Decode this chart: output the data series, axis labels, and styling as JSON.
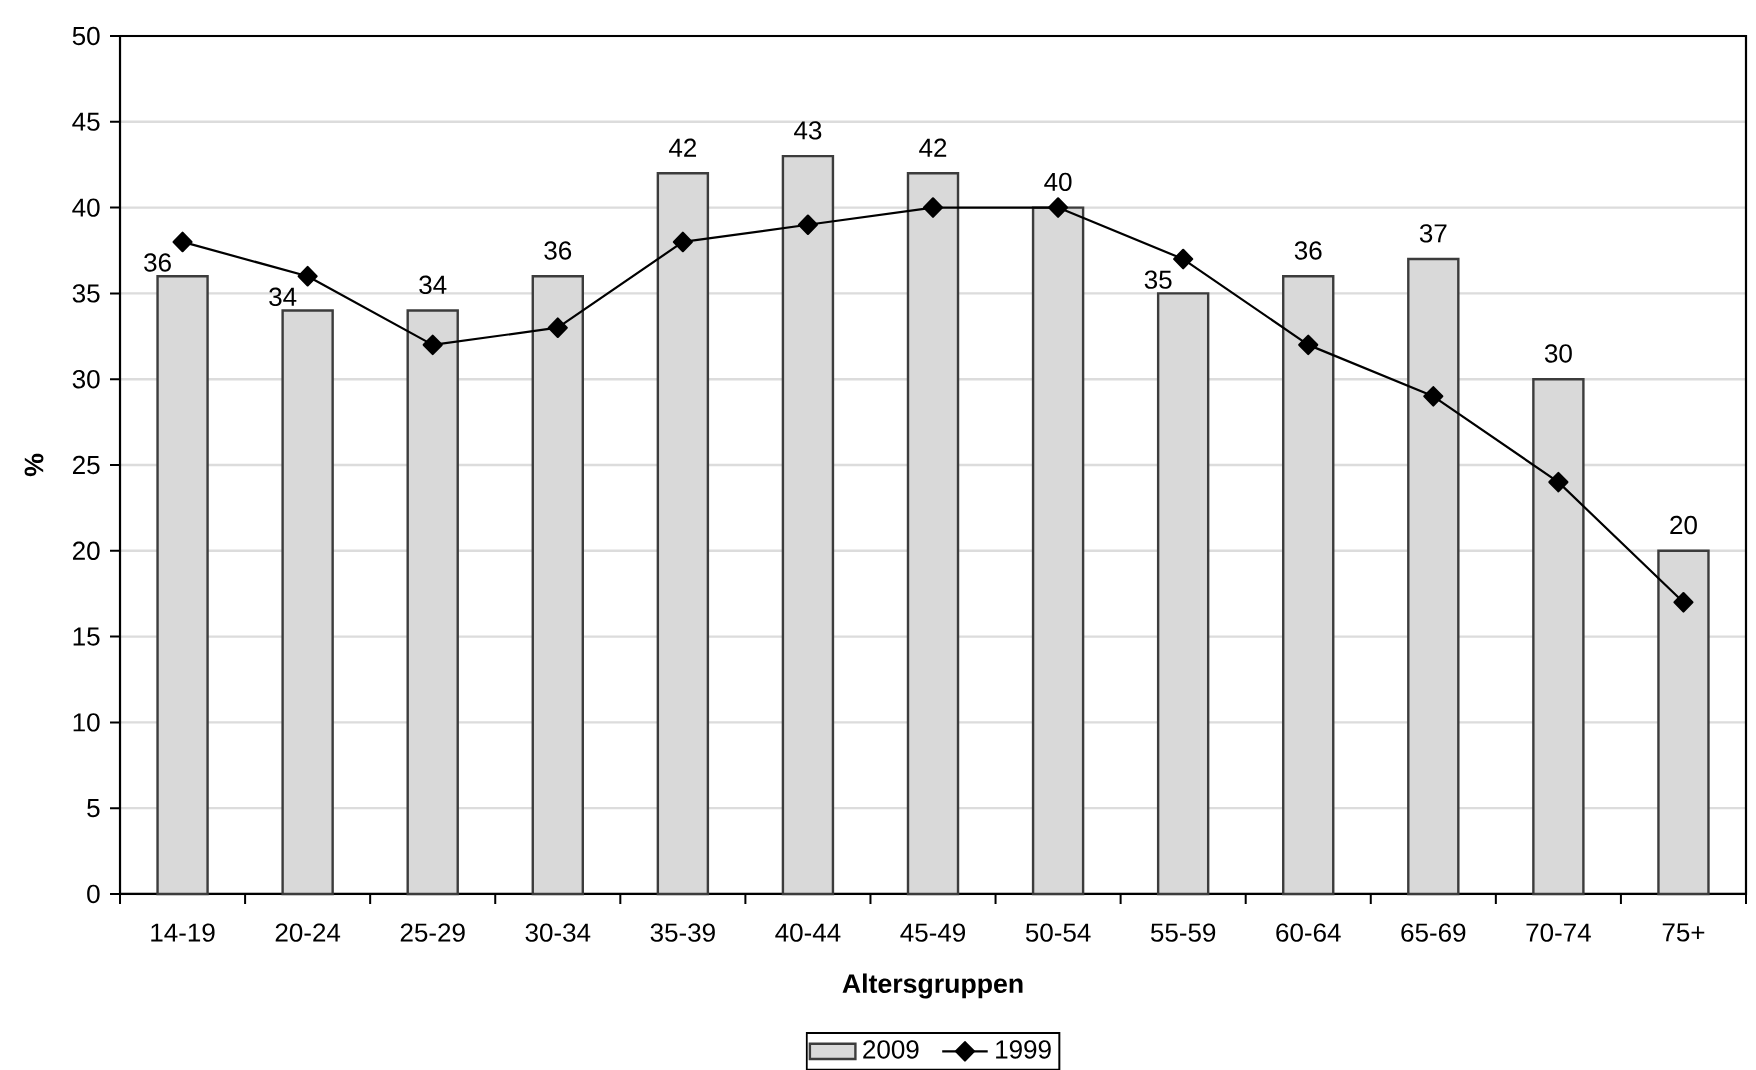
{
  "chart_data": {
    "type": "bar",
    "xlabel": "Altersgruppen",
    "ylabel": "%",
    "categories": [
      "14-19",
      "20-24",
      "25-29",
      "30-34",
      "35-39",
      "40-44",
      "45-49",
      "50-54",
      "55-59",
      "60-64",
      "65-69",
      "70-74",
      "75+"
    ],
    "series": [
      {
        "name": "2009",
        "color": "#d9d9d9",
        "values": [
          36,
          34,
          34,
          36,
          42,
          43,
          42,
          40,
          35,
          36,
          37,
          30,
          20
        ],
        "value_labels": [
          "36",
          "34",
          "34",
          "36",
          "42",
          "43",
          "42",
          "40",
          "35",
          "36",
          "37",
          "30",
          "20"
        ]
      },
      {
        "name": "1999",
        "type": "line",
        "color": "#000000",
        "values": [
          38,
          36,
          32,
          33,
          38,
          39,
          40,
          40,
          37,
          32,
          29,
          24,
          17
        ],
        "marker": "diamond",
        "line_style": "solid"
      }
    ],
    "ylim": [
      0,
      50
    ],
    "yticks": [
      0,
      5,
      10,
      15,
      20,
      25,
      30,
      35,
      40,
      45,
      50
    ],
    "grid": "y",
    "legend": "bottom"
  }
}
